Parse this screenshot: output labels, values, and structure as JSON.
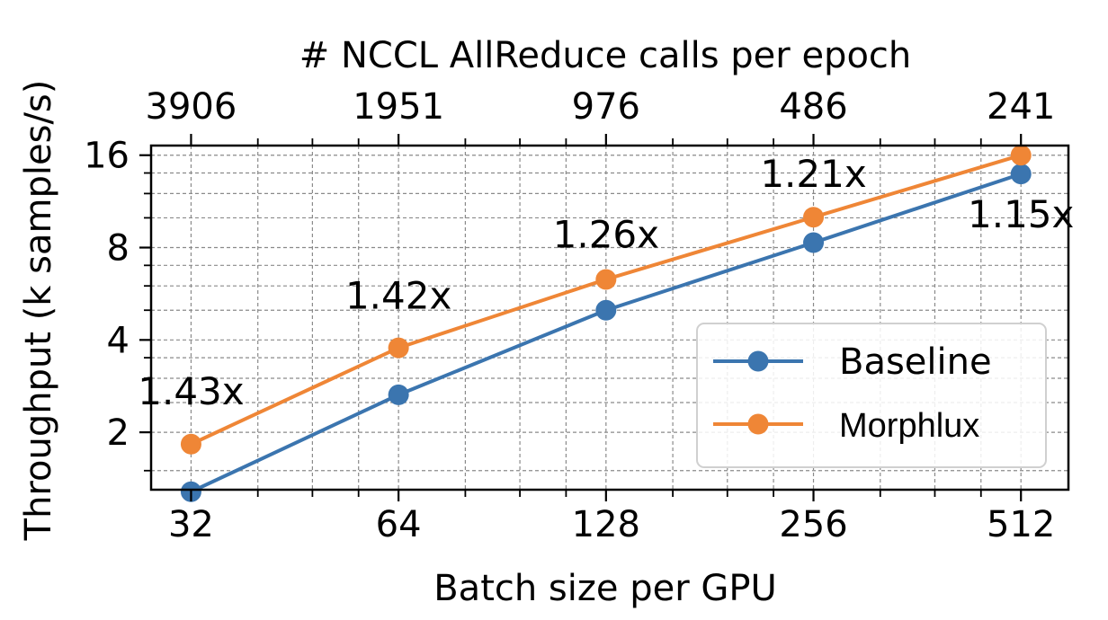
{
  "chart_data": {
    "type": "line",
    "xlabel": "Batch size per GPU",
    "ylabel": "Throughput (k samples/s)",
    "top_xlabel": "# NCCL AllReduce calls per epoch",
    "x_scale": "log2",
    "y_scale": "log2",
    "x": [
      32,
      64,
      128,
      256,
      512
    ],
    "x_tick_labels": [
      "32",
      "64",
      "128",
      "256",
      "512"
    ],
    "top_tick_labels": [
      "3906",
      "1951",
      "976",
      "486",
      "241"
    ],
    "y_ticks": [
      2,
      4,
      8,
      16
    ],
    "y_tick_labels": [
      "2",
      "4",
      "8",
      "16"
    ],
    "xlim": [
      28,
      600
    ],
    "ylim": [
      1.3,
      17.2
    ],
    "grid": true,
    "legend_position": "lower-right",
    "series": [
      {
        "name": "Baseline",
        "color": "#3b75af",
        "values": [
          1.28,
          2.65,
          5.0,
          8.3,
          13.9
        ]
      },
      {
        "name": "Morphlux",
        "color": "#ef8636",
        "values": [
          1.83,
          3.77,
          6.3,
          10.05,
          16.0
        ]
      }
    ],
    "annotations": [
      {
        "text": "1.43x",
        "x": 32,
        "y": 2.47
      },
      {
        "text": "1.42x",
        "x": 64,
        "y": 5.05
      },
      {
        "text": "1.26x",
        "x": 128,
        "y": 8.0
      },
      {
        "text": "1.21x",
        "x": 256,
        "y": 12.6
      },
      {
        "text": "1.15x",
        "x": 512,
        "y": 9.3
      }
    ]
  }
}
